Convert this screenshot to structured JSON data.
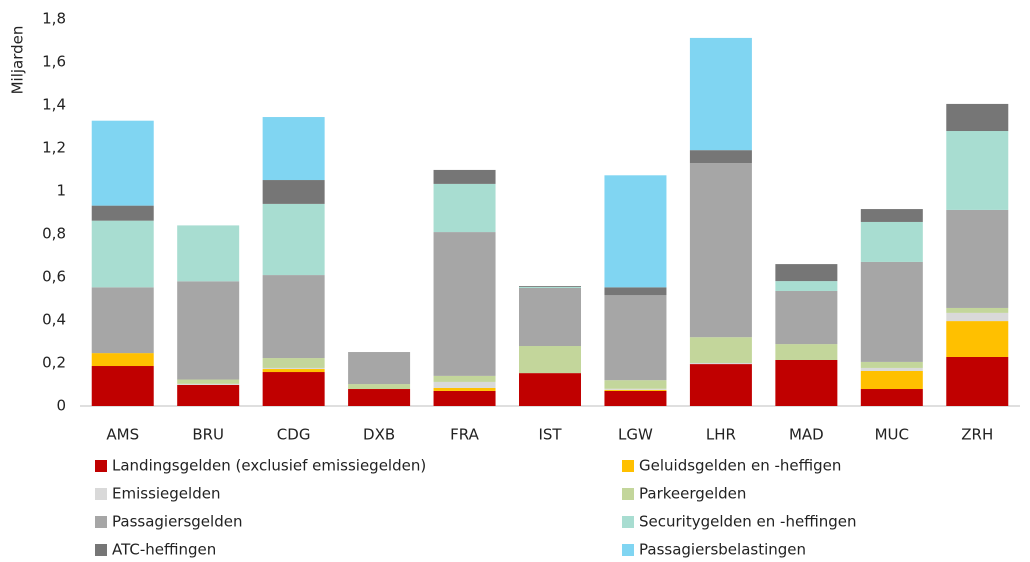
{
  "chart_data": {
    "type": "stacked-bar",
    "y_label": "Miljarden",
    "categories": [
      "AMS",
      "BRU",
      "CDG",
      "DXB",
      "FRA",
      "IST",
      "LGW",
      "LHR",
      "MAD",
      "MUC",
      "ZRH"
    ],
    "series": [
      {
        "name": "Landingsgelden (exclusief emissiegelden)",
        "color": "#c00000",
        "values": [
          0.186,
          0.098,
          0.158,
          0.079,
          0.07,
          0.153,
          0.07,
          0.195,
          0.214,
          0.079,
          0.228
        ]
      },
      {
        "name": "Geluidsgelden en -heffigen",
        "color": "#ffc000",
        "values": [
          0.06,
          0,
          0.014,
          0,
          0.014,
          0,
          0.005,
          0,
          0,
          0.084,
          0.167
        ]
      },
      {
        "name": "Emissiegelden",
        "color": "#d9d9d9",
        "values": [
          0,
          0.005,
          0.005,
          0,
          0.028,
          0,
          0.005,
          0.005,
          0,
          0.014,
          0.038
        ]
      },
      {
        "name": "Parkeergelden",
        "color": "#c3d69b",
        "values": [
          0,
          0.02,
          0.046,
          0.023,
          0.028,
          0.126,
          0.04,
          0.12,
          0.074,
          0.028,
          0.023
        ]
      },
      {
        "name": "Passagiersgelden",
        "color": "#a6a6a6",
        "values": [
          0.306,
          0.457,
          0.386,
          0.149,
          0.669,
          0.27,
          0.395,
          0.81,
          0.247,
          0.465,
          0.456
        ]
      },
      {
        "name": "Securitygelden en -heffingen",
        "color": "#a8ddd1",
        "values": [
          0.31,
          0.26,
          0.331,
          0,
          0.224,
          0.005,
          0,
          0,
          0.046,
          0.186,
          0.367
        ]
      },
      {
        "name": "ATC-heffingen",
        "color": "#767676",
        "values": [
          0.07,
          0,
          0.111,
          0,
          0.065,
          0.004,
          0.037,
          0.06,
          0.079,
          0.06,
          0.126
        ]
      },
      {
        "name": "Passagiersbelastingen",
        "color": "#80d5f2",
        "values": [
          0.395,
          0,
          0.293,
          0,
          0,
          0,
          0.521,
          0.522,
          0,
          0,
          0
        ]
      }
    ],
    "ylim": [
      0,
      1.8
    ],
    "yticks": [
      0,
      {
        "value": 0.2,
        "label": "0,2"
      },
      {
        "value": 0.4,
        "label": "0,4"
      },
      {
        "value": 0.6,
        "label": "0,6"
      },
      {
        "value": 0.8,
        "label": "0,8"
      },
      1,
      {
        "value": 1.2,
        "label": "1,2"
      },
      {
        "value": 1.4,
        "label": "1,4"
      },
      {
        "value": 1.6,
        "label": "1,6"
      },
      {
        "value": 1.8,
        "label": "1,8"
      }
    ],
    "grid": false,
    "legend": "bottom"
  }
}
